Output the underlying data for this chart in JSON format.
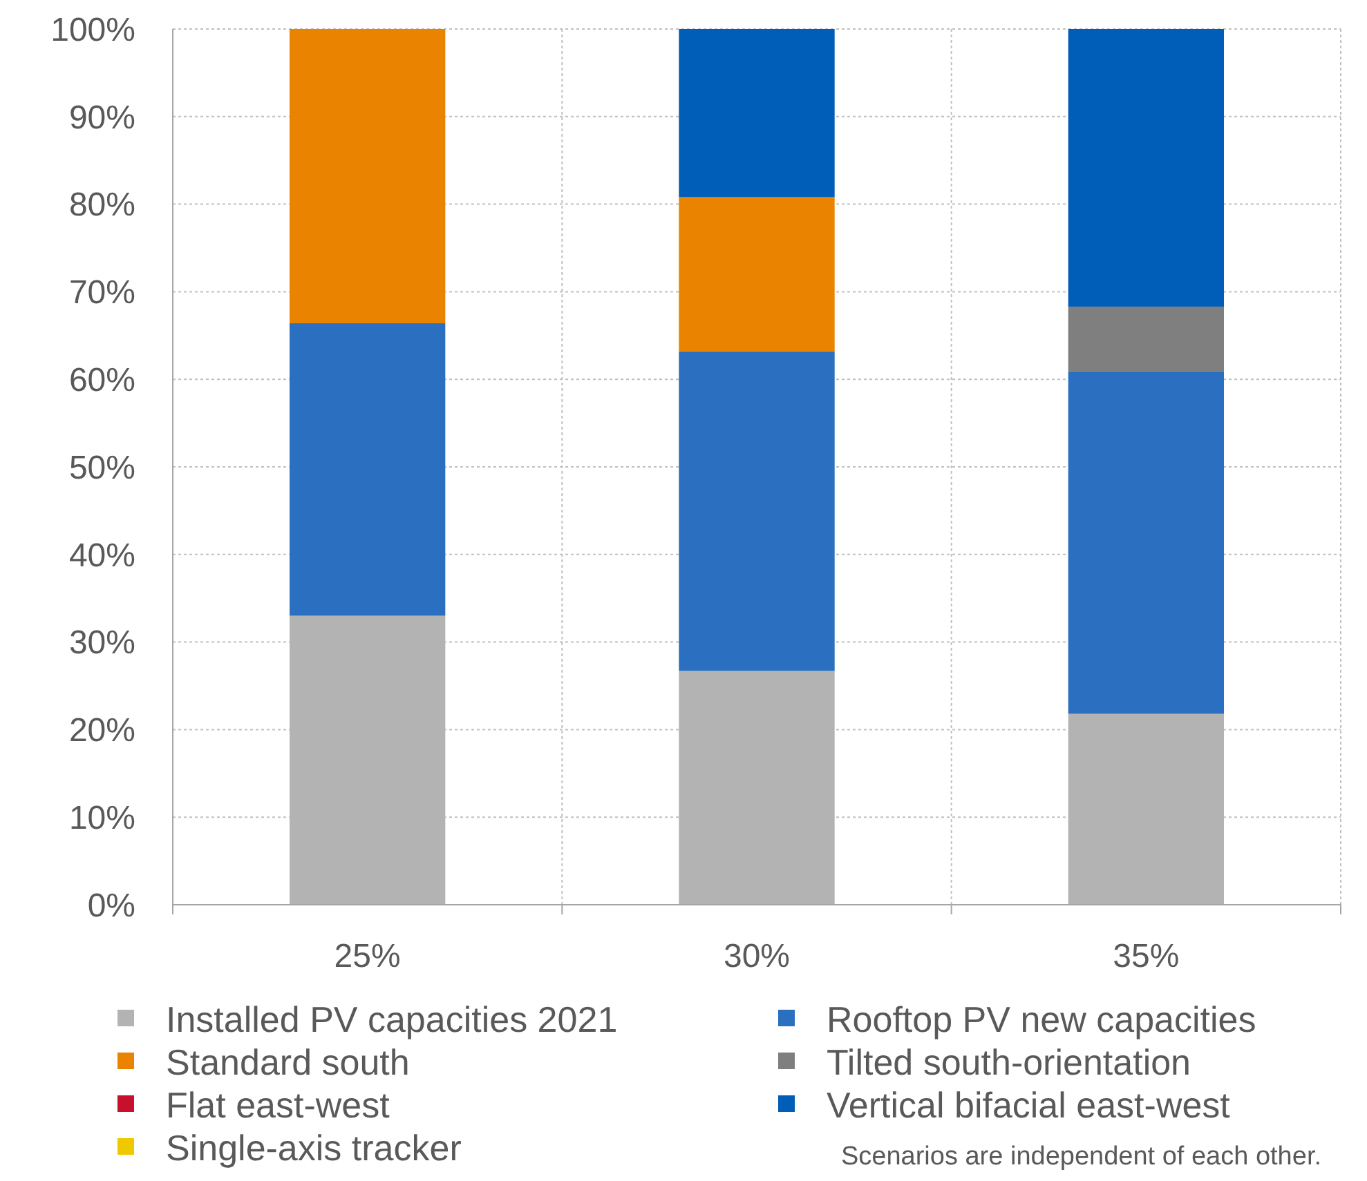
{
  "chart_data": {
    "type": "bar",
    "stacked": true,
    "categories": [
      "25%",
      "30%",
      "35%"
    ],
    "series": [
      {
        "name": "Installed PV capacities 2021",
        "color": "#b3b3b3",
        "values": [
          33,
          26.7,
          21.8
        ]
      },
      {
        "name": "Rooftop PV new capacities",
        "color": "#2a6fc0",
        "values": [
          33.4,
          36.5,
          39.1
        ]
      },
      {
        "name": "Standard south",
        "color": "#e98300",
        "values": [
          33.6,
          17.6,
          0
        ]
      },
      {
        "name": "Tilted south-orientation",
        "color": "#7f7f7f",
        "values": [
          0,
          0,
          7.4
        ]
      },
      {
        "name": "Flat east-west",
        "color": "#c8102e",
        "values": [
          0,
          0,
          0
        ]
      },
      {
        "name": "Vertical bifacial east-west",
        "color": "#005eb8",
        "values": [
          0,
          19.2,
          31.7
        ]
      },
      {
        "name": "Single-axis tracker",
        "color": "#f0c800",
        "values": [
          0,
          0,
          0
        ]
      }
    ],
    "ylim": [
      0,
      100
    ],
    "yticks": [
      {
        "value": 0,
        "label": "0%"
      },
      {
        "value": 10,
        "label": "10%"
      },
      {
        "value": 20,
        "label": "20%"
      },
      {
        "value": 30,
        "label": "30%"
      },
      {
        "value": 40,
        "label": "40%"
      },
      {
        "value": 50,
        "label": "50%"
      },
      {
        "value": 60,
        "label": "60%"
      },
      {
        "value": 70,
        "label": "70%"
      },
      {
        "value": 80,
        "label": "80%"
      },
      {
        "value": 90,
        "label": "90%"
      },
      {
        "value": 100,
        "label": "100%"
      }
    ],
    "grid": true,
    "legend": "bottom",
    "annotations": [
      "Scenarios are independent of each other."
    ]
  }
}
